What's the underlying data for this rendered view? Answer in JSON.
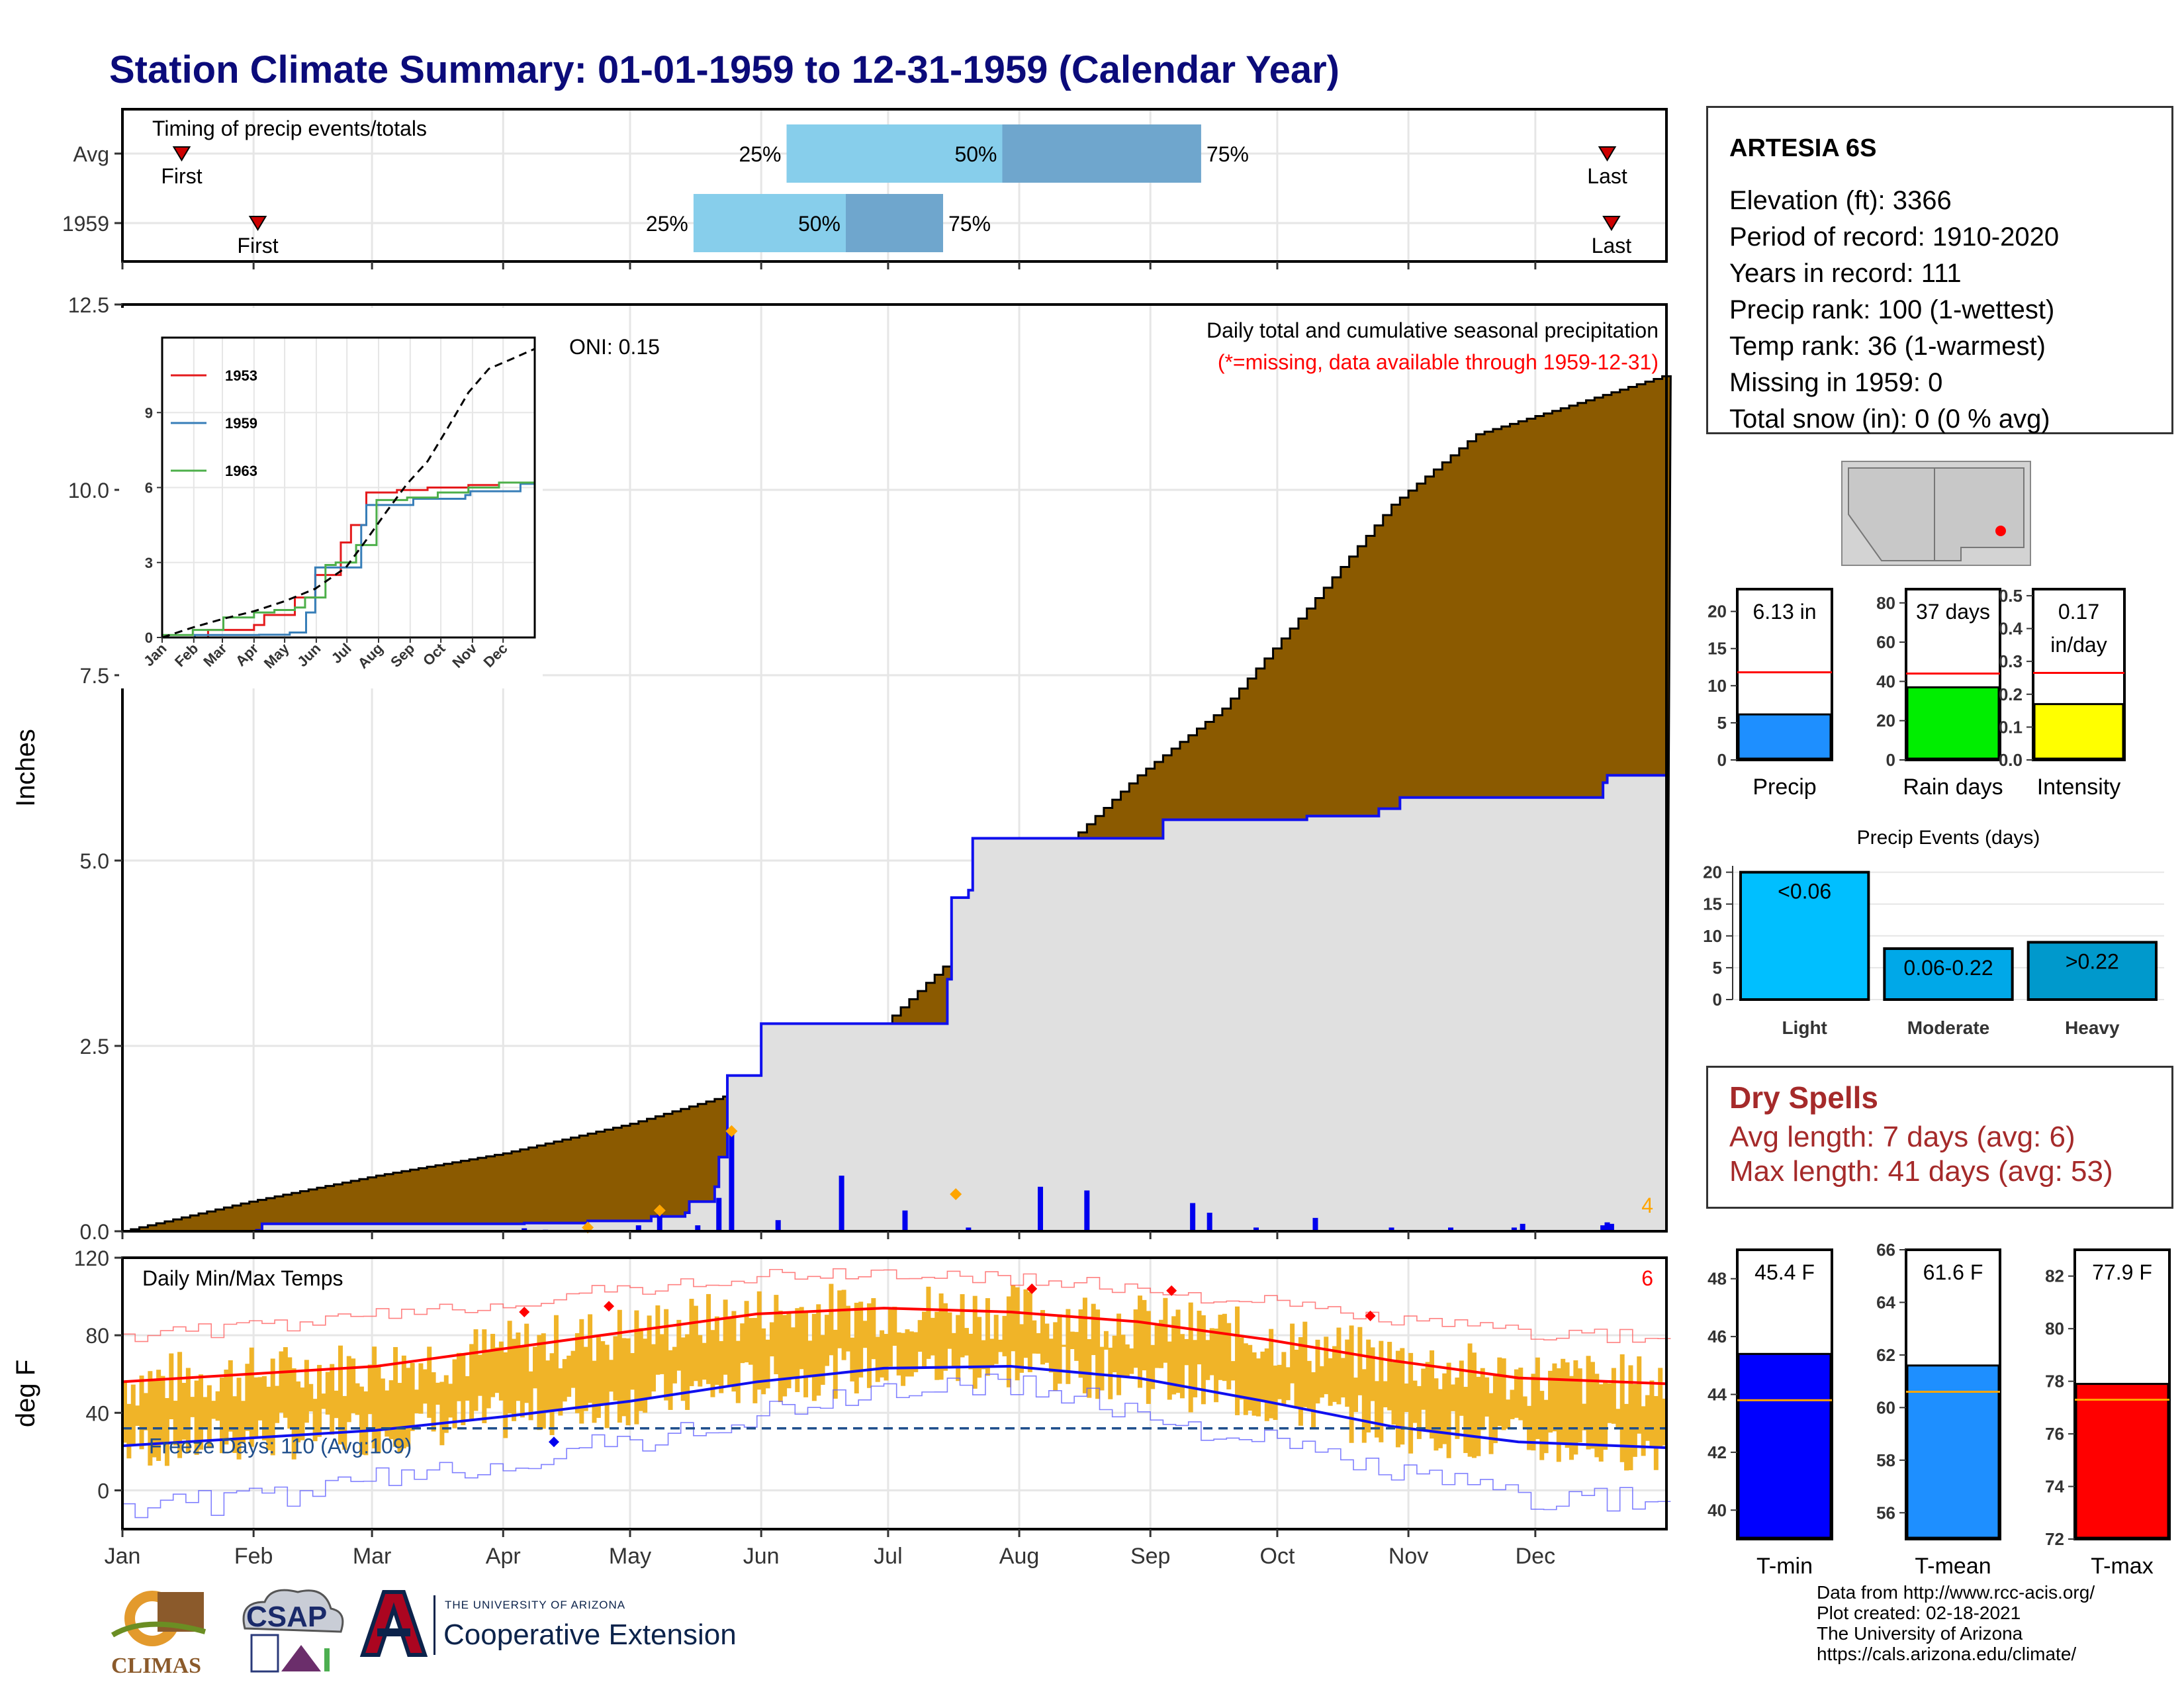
{
  "page": {
    "title": "Station Climate Summary: 01-01-1959 to 12-31-1959 (Calendar Year)"
  },
  "station": {
    "name": "ARTESIA 6S",
    "lines": [
      "Elevation (ft): 3366",
      "Period of record: 1910-2020",
      "Years in record: 111",
      "Precip rank: 100 (1-wettest)",
      "Temp rank: 36 (1-warmest)",
      "Missing in 1959: 0",
      "Total snow (in): 0 (0 % avg)"
    ]
  },
  "dry_spells": {
    "title": "Dry Spells",
    "avg_line": "Avg length: 7 days (avg: 6)",
    "max_line": "Max length: 41 days (avg: 53)"
  },
  "credits": [
    "Data from http://www.rcc-acis.org/",
    "Plot created: 02-18-2021",
    "The University of Arizona",
    "https://cals.arizona.edu/climate/"
  ],
  "logos": {
    "climas": "CLIMAS",
    "csap": "CSAP",
    "ua_small": "THE UNIVERSITY OF ARIZONA",
    "ua_ext": "Cooperative Extension"
  },
  "colors": {
    "navy_title": "#0b0b7a",
    "avg_precip_fill": "#8b5a00",
    "year_precip_fill": "#e0e0e0",
    "year_line": "#1010ee",
    "bar_light": "#87ceeb",
    "bar_dark": "#6fa6cd",
    "temp_band": "#f0b428",
    "tmax_avg": "#ff0000",
    "tmin_avg": "#1010ee",
    "dry_spell_text": "#a52a2a"
  },
  "chart_data": [
    {
      "id": "timing",
      "type": "bar",
      "title": "Timing of precip events/totals",
      "rows": [
        {
          "label": "Avg",
          "first_label": "First",
          "last_label": "Last",
          "first_day": 14,
          "last_day": 351,
          "p25_day": 157,
          "p50_day": 208,
          "p75_day": 255,
          "p25": "25%",
          "p50": "50%",
          "p75": "75%"
        },
        {
          "label": "1959",
          "first_label": "First",
          "last_label": "Last",
          "first_day": 32,
          "last_day": 352,
          "p25_day": 135,
          "p50_day": 171,
          "p75_day": 194,
          "p25": "25%",
          "p50": "50%",
          "p75": "75%"
        }
      ]
    },
    {
      "id": "cumulative-precip",
      "type": "area",
      "ylabel": "Inches",
      "ylim": [
        0,
        12.5
      ],
      "yticks": [
        0.0,
        2.5,
        5.0,
        7.5,
        10.0,
        12.5
      ],
      "ytick_labels": [
        "0.0",
        "2.5",
        "5.0",
        "7.5",
        "10.0",
        "12.5"
      ],
      "annotations": {
        "oni": "ONI: 0.15",
        "title": "Daily total and cumulative seasonal precipitation",
        "missing_note": "(*=missing, data available through 1959-12-31)",
        "corner_count": "4"
      },
      "avg_cumulative": {
        "x": [
          0,
          30,
          60,
          90,
          120,
          150,
          180,
          200,
          220,
          240,
          260,
          280,
          300,
          320,
          340,
          365
        ],
        "y": [
          0,
          0.4,
          0.75,
          1.05,
          1.45,
          1.95,
          2.8,
          3.9,
          5.05,
          6.15,
          7.05,
          8.4,
          9.8,
          10.75,
          11.1,
          11.55
        ]
      },
      "year_cumulative": {
        "x": [
          0,
          32,
          33,
          60,
          95,
          110,
          125,
          133,
          134,
          140,
          141,
          143,
          150,
          151,
          160,
          195,
          196,
          200,
          201,
          220,
          246,
          280,
          297,
          302,
          340,
          350,
          351,
          365
        ],
        "y": [
          0,
          0,
          0.1,
          0.1,
          0.11,
          0.14,
          0.2,
          0.25,
          0.4,
          0.6,
          1.0,
          2.1,
          2.1,
          2.8,
          2.8,
          3.4,
          4.5,
          4.6,
          5.3,
          5.3,
          5.55,
          5.6,
          5.7,
          5.85,
          5.85,
          6.05,
          6.15,
          6.15
        ]
      },
      "daily_bars": {
        "x": [
          32,
          95,
          100,
          110,
          122,
          127,
          136,
          141,
          144,
          155,
          170,
          185,
          200,
          217,
          228,
          253,
          257,
          268,
          282,
          300,
          314,
          329,
          331,
          350,
          351,
          352
        ],
        "y": [
          0.03,
          0.04,
          0.02,
          0.03,
          0.08,
          0.25,
          0.08,
          0.45,
          1.35,
          0.15,
          0.75,
          0.28,
          0.05,
          0.6,
          0.55,
          0.38,
          0.25,
          0.05,
          0.18,
          0.05,
          0.05,
          0.05,
          0.1,
          0.08,
          0.12,
          0.1
        ]
      },
      "diamonds": {
        "x": [
          110,
          127,
          144,
          197
        ],
        "y": [
          0.05,
          0.28,
          1.35,
          0.5
        ]
      }
    },
    {
      "id": "inset-cumulative",
      "type": "line",
      "ylim": [
        0,
        12
      ],
      "yticks": [
        0,
        3,
        6,
        9
      ],
      "ytick_labels": [
        "0",
        "3",
        "6",
        "9"
      ],
      "categories": [
        "Jan",
        "Feb",
        "Mar",
        "Apr",
        "May",
        "Jun",
        "Jul",
        "Aug",
        "Sep",
        "Oct",
        "Nov",
        "Dec"
      ],
      "legend": "top-left",
      "series": [
        {
          "name": "1953",
          "color": "#e41a1c",
          "x": [
            0,
            45,
            90,
            100,
            130,
            150,
            165,
            175,
            185,
            200,
            230,
            260,
            300,
            330,
            365
          ],
          "y": [
            0,
            0.3,
            0.5,
            0.9,
            1.6,
            2.5,
            2.5,
            3.8,
            4.5,
            5.8,
            5.9,
            6.0,
            6.1,
            6.2,
            6.3
          ]
        },
        {
          "name": "1959",
          "color": "#377eb8",
          "x": [
            0,
            32,
            60,
            95,
            125,
            141,
            150,
            160,
            195,
            200,
            246,
            297,
            302,
            340,
            351,
            365
          ],
          "y": [
            0,
            0.1,
            0.1,
            0.11,
            0.2,
            1.0,
            2.8,
            2.8,
            4.5,
            5.3,
            5.55,
            5.7,
            5.85,
            5.85,
            6.15,
            6.15
          ]
        },
        {
          "name": "1963",
          "color": "#4daf4a",
          "x": [
            0,
            30,
            60,
            90,
            110,
            130,
            140,
            160,
            170,
            190,
            210,
            240,
            270,
            300,
            330,
            365
          ],
          "y": [
            0.1,
            0.3,
            0.8,
            1.0,
            1.1,
            1.2,
            1.6,
            2.9,
            3.0,
            3.7,
            5.5,
            5.6,
            5.8,
            6.0,
            6.2,
            6.3
          ]
        },
        {
          "name": "",
          "color": "#000000",
          "dash": true,
          "x": [
            0,
            30,
            60,
            90,
            120,
            150,
            180,
            200,
            220,
            240,
            260,
            280,
            300,
            320,
            340,
            365
          ],
          "y": [
            0,
            0.4,
            0.75,
            1.05,
            1.45,
            1.95,
            2.8,
            3.9,
            5.05,
            6.15,
            7.05,
            8.4,
            9.8,
            10.75,
            11.1,
            11.55
          ]
        }
      ]
    },
    {
      "id": "temps",
      "type": "line",
      "title": "Daily Min/Max Temps",
      "ylabel": "deg F",
      "ylim": [
        -20,
        120
      ],
      "yticks": [
        0,
        40,
        80,
        120
      ],
      "ytick_labels": [
        "0",
        "40",
        "80",
        "120"
      ],
      "corner_count": "6",
      "freeze_label": "Freeze Days: 110 (Avg:109)",
      "freeze_threshold": 32,
      "tmax_avg": {
        "x": [
          0,
          30,
          60,
          90,
          120,
          150,
          180,
          210,
          240,
          270,
          300,
          330,
          365
        ],
        "y": [
          56,
          60,
          64,
          73,
          82,
          91,
          94,
          92,
          87,
          78,
          67,
          58,
          55
        ]
      },
      "tmin_avg": {
        "x": [
          0,
          30,
          60,
          90,
          120,
          150,
          180,
          210,
          240,
          270,
          300,
          330,
          365
        ],
        "y": [
          23,
          27,
          31,
          38,
          46,
          56,
          63,
          64,
          58,
          46,
          33,
          25,
          22
        ]
      },
      "tmax_record": {
        "x": [
          0,
          30,
          60,
          90,
          120,
          150,
          180,
          210,
          240,
          270,
          300,
          330,
          365
        ],
        "y": [
          80,
          84,
          90,
          97,
          104,
          110,
          112,
          109,
          104,
          97,
          88,
          82,
          78
        ]
      },
      "tmin_record": {
        "x": [
          0,
          30,
          60,
          90,
          120,
          150,
          180,
          210,
          240,
          270,
          300,
          330,
          365
        ],
        "y": [
          -8,
          -5,
          5,
          15,
          25,
          38,
          52,
          55,
          40,
          25,
          10,
          -3,
          -6
        ]
      },
      "record_diamonds": {
        "x": [
          95,
          115,
          215,
          248,
          295,
          102
        ],
        "y": [
          92,
          95,
          104,
          103,
          90,
          25
        ]
      }
    },
    {
      "id": "precip-bars",
      "type": "bar",
      "panels": [
        {
          "category": "Precip",
          "value_label": "6.13 in",
          "value": 6.13,
          "avg": 11.8,
          "ylim": [
            0,
            23
          ],
          "yticks": [
            0,
            5,
            10,
            15,
            20
          ],
          "color": "#1e8fff"
        },
        {
          "category": "Rain days",
          "value_label": "37 days",
          "value": 37,
          "avg": 44,
          "ylim": [
            0,
            87
          ],
          "yticks": [
            0,
            20,
            40,
            60,
            80
          ],
          "color": "#00ee00"
        },
        {
          "category": "Intensity",
          "value_label": "0.17\nin/day",
          "value": 0.17,
          "avg": 0.265,
          "ylim": [
            0,
            0.52
          ],
          "yticks": [
            0.0,
            0.1,
            0.2,
            0.3,
            0.4,
            0.5
          ],
          "color": "#ffff00"
        }
      ]
    },
    {
      "id": "precip-events",
      "type": "bar",
      "title": "Precip Events (days)",
      "categories": [
        "Light",
        "Moderate",
        "Heavy"
      ],
      "labels": [
        "<0.06",
        "0.06-0.22",
        ">0.22"
      ],
      "values": [
        20,
        8,
        9
      ],
      "ylim": [
        0,
        21
      ],
      "yticks": [
        0,
        5,
        10,
        15,
        20
      ],
      "colors": [
        "#00bfff",
        "#00a8e8",
        "#0099cc"
      ]
    },
    {
      "id": "temp-bars",
      "type": "bar",
      "panels": [
        {
          "category": "T-min",
          "value_label": "45.4 F",
          "value": 45.4,
          "avg": 43.8,
          "ylim": [
            39,
            49
          ],
          "yticks": [
            40,
            42,
            44,
            46,
            48
          ],
          "color": "#0000ff"
        },
        {
          "category": "T-mean",
          "value_label": "61.6 F",
          "value": 61.6,
          "avg": 60.6,
          "ylim": [
            55,
            66
          ],
          "yticks": [
            56,
            58,
            60,
            62,
            64,
            66
          ],
          "color": "#1e8fff"
        },
        {
          "category": "T-max",
          "value_label": "77.9 F",
          "value": 77.9,
          "avg": 77.3,
          "ylim": [
            72,
            83
          ],
          "yticks": [
            72,
            74,
            76,
            78,
            80,
            82
          ],
          "color": "#ff0000"
        }
      ]
    },
    {
      "id": "month-axis",
      "type": "table",
      "months": [
        "Jan",
        "Feb",
        "Mar",
        "Apr",
        "May",
        "Jun",
        "Jul",
        "Aug",
        "Sep",
        "Oct",
        "Nov",
        "Dec"
      ],
      "month_start_days": [
        0,
        31,
        59,
        90,
        120,
        151,
        181,
        212,
        243,
        273,
        304,
        334
      ]
    }
  ]
}
